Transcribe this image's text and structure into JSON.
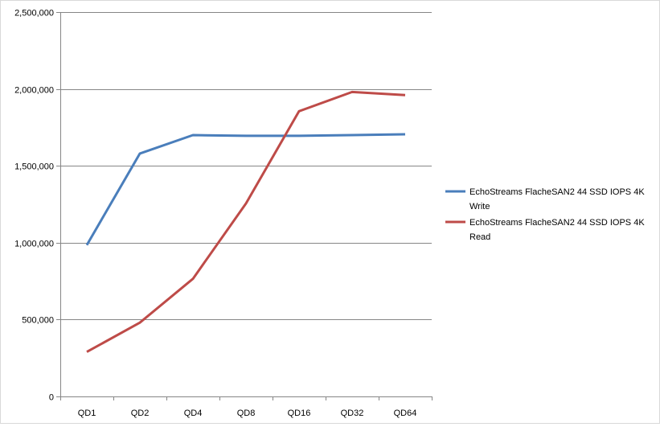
{
  "chart_data": {
    "type": "line",
    "title": "",
    "xlabel": "",
    "ylabel": "",
    "categories": [
      "QD1",
      "QD2",
      "QD4",
      "QD8",
      "QD16",
      "QD32",
      "QD64"
    ],
    "ylim": [
      0,
      2500000
    ],
    "yticks": [
      "0",
      "500,000",
      "1,000,000",
      "1,500,000",
      "2,000,000",
      "2,500,000"
    ],
    "ytick_values": [
      0,
      500000,
      1000000,
      1500000,
      2000000,
      2500000
    ],
    "grid": "horizontal",
    "legend_position": "right",
    "series": [
      {
        "name": "EchoStreams FlacheSAN2 44 SSD IOPS 4K Write",
        "legend_lines": [
          "EchoStreams FlacheSAN2 44 SSD IOPS 4K",
          "Write"
        ],
        "color": "#4a7ebb",
        "values": [
          985000,
          1580000,
          1700000,
          1695000,
          1695000,
          1700000,
          1705000
        ]
      },
      {
        "name": "EchoStreams FlacheSAN2 44 SSD IOPS 4K Read",
        "legend_lines": [
          "EchoStreams FlacheSAN2 44 SSD IOPS 4K",
          "Read"
        ],
        "color": "#be4b48",
        "values": [
          290000,
          480000,
          765000,
          1255000,
          1855000,
          1980000,
          1960000
        ]
      }
    ]
  }
}
